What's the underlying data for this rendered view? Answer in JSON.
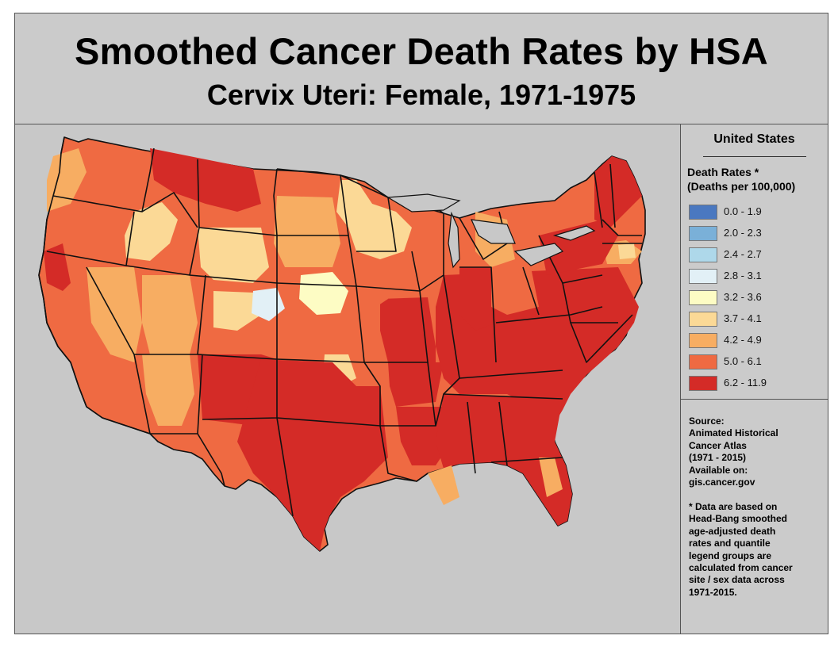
{
  "title": "Smoothed Cancer Death Rates by HSA",
  "subtitle": "Cervix Uteri: Female, 1971-1975",
  "legend": {
    "region": "United States",
    "label_line1": "Death Rates *",
    "label_line2": "(Deaths per 100,000)",
    "items": [
      {
        "label": "0.0 - 1.9",
        "color": "#4a78c0"
      },
      {
        "label": "2.0 - 2.3",
        "color": "#7ab0d8"
      },
      {
        "label": "2.4 - 2.7",
        "color": "#aed8ea"
      },
      {
        "label": "2.8 - 3.1",
        "color": "#e2f0f6"
      },
      {
        "label": "3.2 - 3.6",
        "color": "#fdfcc4"
      },
      {
        "label": "3.7 - 4.1",
        "color": "#fbd996"
      },
      {
        "label": "4.2 - 4.9",
        "color": "#f7ad62"
      },
      {
        "label": "5.0 - 6.1",
        "color": "#ef6a42"
      },
      {
        "label": "6.2 - 11.9",
        "color": "#d42b27"
      }
    ]
  },
  "source": {
    "lines": [
      "Source:",
      "Animated Historical",
      "Cancer Atlas",
      "(1971 - 2015)",
      "Available on:",
      "gis.cancer.gov"
    ]
  },
  "note": {
    "lines": [
      "* Data are based on",
      "Head-Bang smoothed",
      "age-adjusted death",
      "rates and quantile",
      "legend groups are",
      "calculated from cancer",
      "site / sex data across",
      "1971-2015."
    ]
  }
}
